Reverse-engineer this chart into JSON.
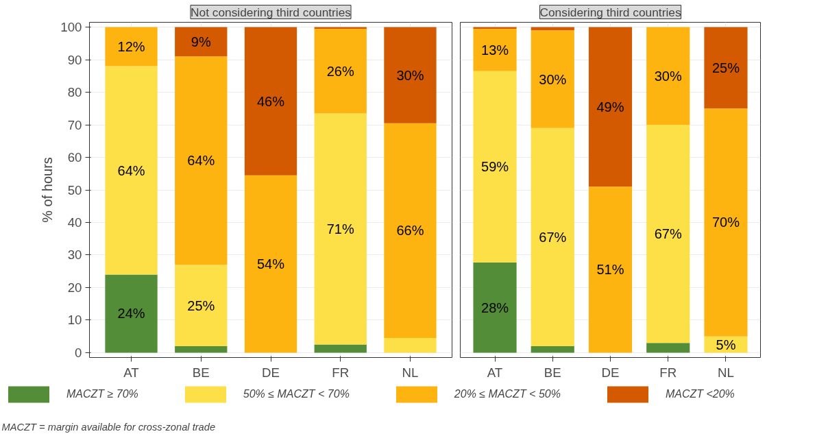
{
  "chart_data": [
    {
      "type": "bar",
      "stacked": true,
      "title": "Not considering third countries",
      "ylabel": "% of hours",
      "categories": [
        "AT",
        "BE",
        "DE",
        "FR",
        "NL"
      ],
      "ylim": [
        -1.5,
        101.5
      ],
      "yticks": [
        0,
        10,
        20,
        30,
        40,
        50,
        60,
        70,
        80,
        90,
        100
      ],
      "grid": true,
      "legend": "bottom",
      "annotations": [
        "MACZT = margin available for cross-zonal trade"
      ],
      "series": [
        {
          "name": "MACZT ≥ 70%",
          "color": "#538d37",
          "values": [
            24,
            2,
            0,
            2.5,
            0
          ],
          "value_labels": [
            "24%",
            null,
            null,
            null,
            null
          ]
        },
        {
          "name": "50% ≤ MACZT < 70%",
          "color": "#fddf48",
          "values": [
            64,
            25,
            0,
            71,
            4.5
          ],
          "value_labels": [
            "64%",
            "25%",
            null,
            "71%",
            null
          ]
        },
        {
          "name": "20% ≤ MACZT < 50%",
          "color": "#feb410",
          "values": [
            12,
            64,
            54.5,
            26,
            66
          ],
          "value_labels": [
            "12%",
            "64%",
            "54%",
            "26%",
            "66%"
          ]
        },
        {
          "name": "MACZT <20%",
          "color": "#d35a00",
          "values": [
            0,
            9,
            45.5,
            0.5,
            29.5
          ],
          "value_labels": [
            null,
            "9%",
            "46%",
            null,
            "30%"
          ]
        }
      ]
    },
    {
      "type": "bar",
      "stacked": true,
      "title": "Considering third countries",
      "categories": [
        "AT",
        "BE",
        "DE",
        "FR",
        "NL"
      ],
      "ylim": [
        -1.5,
        101.5
      ],
      "yticks": [
        0,
        10,
        20,
        30,
        40,
        50,
        60,
        70,
        80,
        90,
        100
      ],
      "grid": true,
      "tick_labels": "x",
      "series": [
        {
          "color": "#538d37",
          "values": [
            27.7,
            2,
            0,
            3,
            0
          ],
          "value_labels": [
            "28%",
            null,
            null,
            null,
            null
          ]
        },
        {
          "color": "#fddf48",
          "values": [
            58.8,
            67,
            0,
            67,
            5
          ],
          "value_labels": [
            "59%",
            "67%",
            null,
            "67%",
            "5%"
          ]
        },
        {
          "color": "#feb410",
          "values": [
            13,
            30,
            51,
            30,
            70
          ],
          "value_labels": [
            "13%",
            "30%",
            "51%",
            "30%",
            "70%"
          ]
        },
        {
          "color": "#d35a00",
          "values": [
            0.5,
            1,
            49,
            0,
            25
          ],
          "value_labels": [
            null,
            null,
            "49%",
            null,
            "25%"
          ]
        }
      ]
    }
  ]
}
